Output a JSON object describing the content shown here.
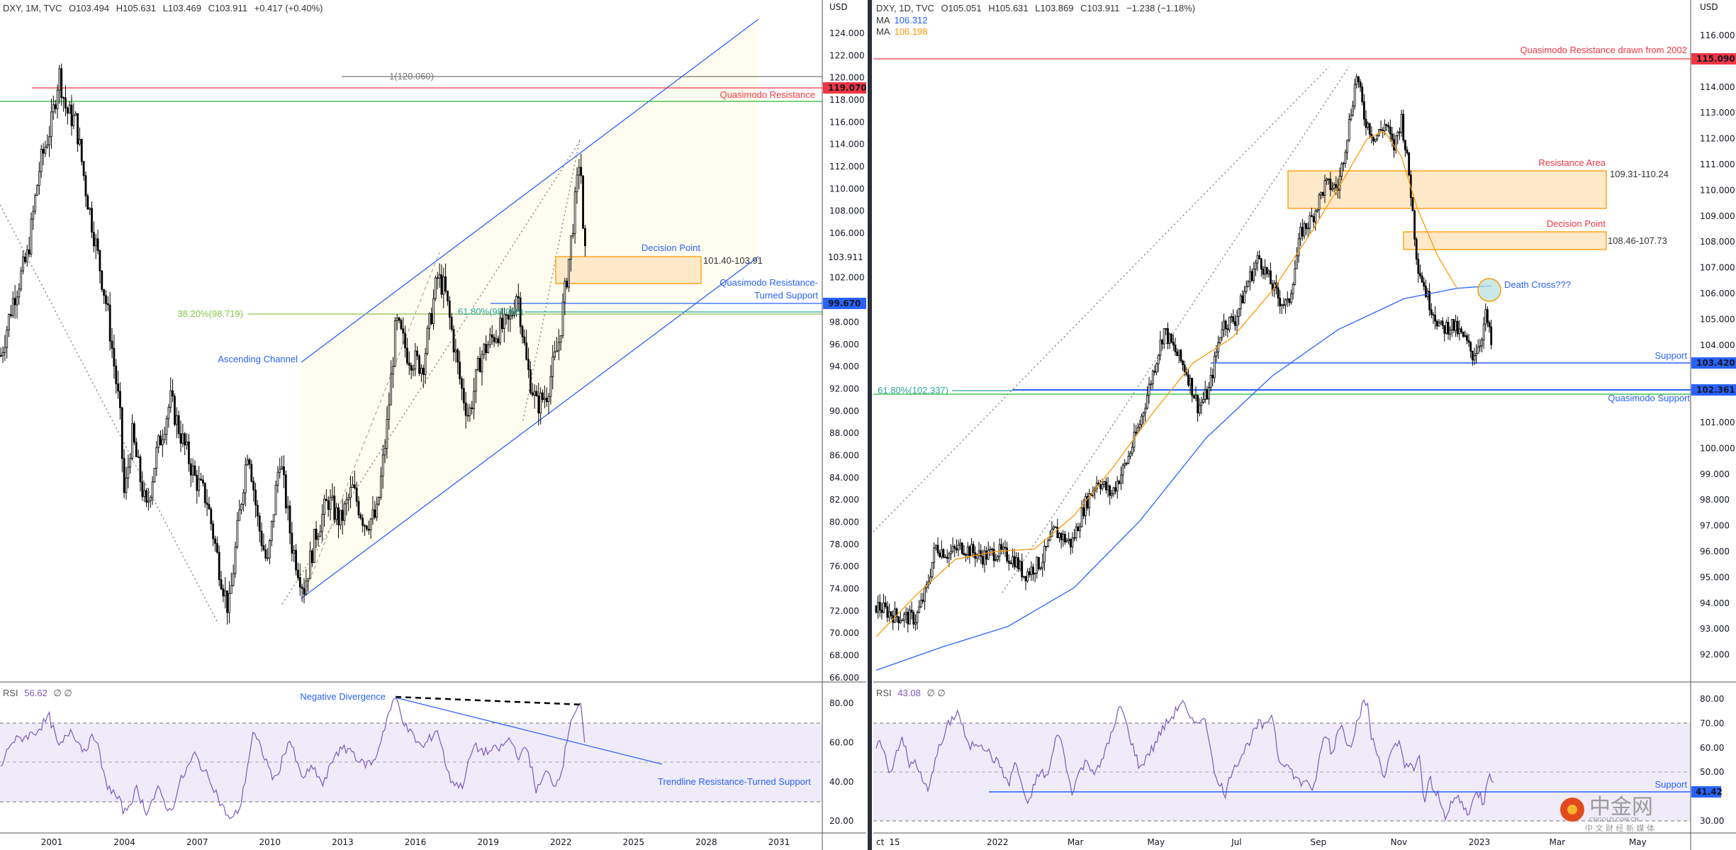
{
  "left_chart": {
    "header": {
      "symbol": "DXY, 1M, TVC",
      "open": "O103.494",
      "high": "H105.631",
      "low": "L103.469",
      "close": "C103.911",
      "change": "+0.417 (+0.40%)"
    },
    "currency": "USD",
    "price_ticks": [
      "124.000",
      "122.000",
      "120.000",
      "118.000",
      "116.000",
      "114.000",
      "112.000",
      "110.000",
      "108.000",
      "106.000",
      "102.000",
      "98.000",
      "96.000",
      "94.000",
      "92.000",
      "90.000",
      "88.000",
      "86.000",
      "84.000",
      "82.000",
      "80.000",
      "78.000",
      "76.000",
      "74.000",
      "72.000",
      "70.000",
      "68.000",
      "66.000"
    ],
    "price_tick_values": [
      124,
      122,
      120,
      118,
      116,
      114,
      112,
      110,
      108,
      106,
      102,
      98,
      96,
      94,
      92,
      90,
      88,
      86,
      84,
      82,
      80,
      78,
      76,
      74,
      72,
      70,
      68,
      66
    ],
    "tags": {
      "quasimodo_resistance": "119.070",
      "last_price": "103.911",
      "turned_support": "99.670"
    },
    "annotations": {
      "fib_1": "1(120.060)",
      "quasimodo_resistance": "Quasimodo Resistance",
      "decision_point": "Decision Point",
      "decision_range": "101.40-103.91",
      "turned_support_1": "Quasimodo Resistance-",
      "turned_support_2": "Turned Support",
      "fib_382": "38.20%(98.719)",
      "fib_618": "61.80%(98.968)",
      "ascending_channel": "Ascending Channel"
    },
    "price_path": [
      [
        1998.9,
        95
      ],
      [
        1999.4,
        100
      ],
      [
        2000.0,
        104
      ],
      [
        2000.5,
        112
      ],
      [
        2001.0,
        116
      ],
      [
        2001.3,
        120.5
      ],
      [
        2001.6,
        117
      ],
      [
        2002.0,
        116
      ],
      [
        2002.4,
        110
      ],
      [
        2002.9,
        104
      ],
      [
        2003.3,
        99
      ],
      [
        2003.8,
        90
      ],
      [
        2004.0,
        82
      ],
      [
        2004.3,
        88
      ],
      [
        2004.9,
        81
      ],
      [
        2005.3,
        86
      ],
      [
        2005.9,
        91
      ],
      [
        2006.3,
        88
      ],
      [
        2006.9,
        84
      ],
      [
        2007.4,
        82
      ],
      [
        2007.9,
        76
      ],
      [
        2008.3,
        72
      ],
      [
        2008.7,
        80
      ],
      [
        2009.1,
        87
      ],
      [
        2009.5,
        80
      ],
      [
        2009.9,
        76
      ],
      [
        2010.4,
        86
      ],
      [
        2010.9,
        78
      ],
      [
        2011.4,
        74
      ],
      [
        2011.9,
        79
      ],
      [
        2012.4,
        82
      ],
      [
        2012.9,
        80
      ],
      [
        2013.4,
        83
      ],
      [
        2013.9,
        80
      ],
      [
        2014.4,
        80.5
      ],
      [
        2014.8,
        88
      ],
      [
        2015.2,
        98
      ],
      [
        2015.7,
        95
      ],
      [
        2016.3,
        94
      ],
      [
        2016.9,
        102
      ],
      [
        2017.2,
        101
      ],
      [
        2017.9,
        92
      ],
      [
        2018.2,
        89.5
      ],
      [
        2018.7,
        95
      ],
      [
        2019.3,
        97
      ],
      [
        2019.9,
        98
      ],
      [
        2020.2,
        101
      ],
      [
        2020.6,
        94
      ],
      [
        2021.0,
        90.5
      ],
      [
        2021.4,
        91.5
      ],
      [
        2021.9,
        96
      ],
      [
        2022.3,
        103
      ],
      [
        2022.7,
        111
      ],
      [
        2022.8,
        114
      ],
      [
        2022.9,
        106
      ],
      [
        2023.0,
        103.9
      ]
    ],
    "rsi": {
      "label": "RSI",
      "value": "56.62",
      "flags": "∅ ∅",
      "ticks": [
        "80.00",
        "60.00",
        "40.00",
        "20.00"
      ],
      "tick_values": [
        80,
        60,
        40,
        20
      ],
      "negative_divergence": "Negative Divergence",
      "trendline_label": "Trendline Resistance-Turned Support",
      "path": [
        [
          1998.9,
          47
        ],
        [
          1999.3,
          60
        ],
        [
          2000.3,
          65
        ],
        [
          2000.9,
          73
        ],
        [
          2001.3,
          57
        ],
        [
          2001.8,
          67
        ],
        [
          2002.3,
          56
        ],
        [
          2002.8,
          64
        ],
        [
          2003.2,
          40
        ],
        [
          2003.8,
          30
        ],
        [
          2004.0,
          24
        ],
        [
          2004.5,
          36
        ],
        [
          2004.9,
          25
        ],
        [
          2005.4,
          36
        ],
        [
          2005.9,
          24
        ],
        [
          2006.3,
          40
        ],
        [
          2006.9,
          54
        ],
        [
          2007.3,
          45
        ],
        [
          2007.6,
          40
        ],
        [
          2008.0,
          28
        ],
        [
          2008.4,
          20
        ],
        [
          2008.8,
          28
        ],
        [
          2009.3,
          65
        ],
        [
          2009.7,
          55
        ],
        [
          2010.2,
          40
        ],
        [
          2010.8,
          62
        ],
        [
          2011.3,
          42
        ],
        [
          2011.8,
          47
        ],
        [
          2012.2,
          38
        ],
        [
          2012.7,
          55
        ],
        [
          2013.3,
          57
        ],
        [
          2013.8,
          49
        ],
        [
          2014.3,
          50
        ],
        [
          2014.9,
          75
        ],
        [
          2015.2,
          83
        ],
        [
          2015.6,
          68
        ],
        [
          2016.3,
          57
        ],
        [
          2016.9,
          67
        ],
        [
          2017.4,
          42
        ],
        [
          2017.9,
          37
        ],
        [
          2018.4,
          58
        ],
        [
          2018.9,
          55
        ],
        [
          2019.5,
          57
        ],
        [
          2019.9,
          62
        ],
        [
          2020.3,
          52
        ],
        [
          2020.6,
          58
        ],
        [
          2021.0,
          35
        ],
        [
          2021.4,
          45
        ],
        [
          2021.8,
          38
        ],
        [
          2022.1,
          50
        ],
        [
          2022.4,
          72
        ],
        [
          2022.8,
          80
        ],
        [
          2023.0,
          56.6
        ]
      ]
    },
    "time_labels": [
      "2001",
      "2004",
      "2007",
      "2010",
      "2013",
      "2016",
      "2019",
      "2022",
      "2025",
      "2028",
      "2031"
    ],
    "time_values": [
      2001,
      2004,
      2007,
      2010,
      2013,
      2016,
      2019,
      2022,
      2025,
      2028,
      2031
    ]
  },
  "right_chart": {
    "header": {
      "symbol": "DXY, 1D, TVC",
      "open": "O105.051",
      "high": "H105.631",
      "low": "L103.869",
      "close": "C103.911",
      "change": "−1.238 (−1.18%)"
    },
    "ma1": {
      "label": "MA",
      "value": "106.312",
      "color": "#2962ff"
    },
    "ma2": {
      "label": "MA",
      "value": "106.198",
      "color": "#ff9800"
    },
    "currency": "USD",
    "price_ticks": [
      "116.000",
      "114.000",
      "113.000",
      "112.000",
      "111.000",
      "110.000",
      "109.000",
      "108.000",
      "107.000",
      "106.000",
      "105.000",
      "104.000",
      "101.000",
      "100.000",
      "99.000",
      "98.000",
      "97.000",
      "96.000",
      "95.000",
      "94.000",
      "93.000",
      "92.000"
    ],
    "price_tick_values": [
      116,
      114,
      113,
      112,
      111,
      110,
      109,
      108,
      107,
      106,
      105,
      104,
      101,
      100,
      99,
      98,
      97,
      96,
      95,
      94,
      93,
      92
    ],
    "tags": {
      "quasimodo_resistance": "115.090",
      "support": "103.420",
      "quasimodo_support": "102.361"
    },
    "annotations": {
      "quasimodo_resistance": "Quasimodo Resistance drawn from 2002",
      "resistance_area": "Resistance Area",
      "resistance_range": "109.31-110.24",
      "decision_point": "Decision Point",
      "decision_range": "108.46-107.73",
      "death_cross": "Death Cross???",
      "support": "Support",
      "fib_618": "61.80%(102.337)",
      "quasimodo_support": "Quasimodo Support"
    },
    "price_path": [
      [
        0,
        93.9
      ],
      [
        15,
        93.5
      ],
      [
        30,
        93.4
      ],
      [
        38,
        94.5
      ],
      [
        45,
        96.2
      ],
      [
        55,
        95.9
      ],
      [
        65,
        96.2
      ],
      [
        80,
        95.8
      ],
      [
        92,
        96
      ],
      [
        105,
        95.7
      ],
      [
        112,
        95.1
      ],
      [
        125,
        95.6
      ],
      [
        135,
        96.8
      ],
      [
        148,
        96.3
      ],
      [
        158,
        97.8
      ],
      [
        168,
        98.8
      ],
      [
        178,
        98.2
      ],
      [
        190,
        99.5
      ],
      [
        200,
        101
      ],
      [
        210,
        103
      ],
      [
        218,
        104.6
      ],
      [
        226,
        103.8
      ],
      [
        235,
        103
      ],
      [
        244,
        101.6
      ],
      [
        252,
        102.2
      ],
      [
        262,
        104.8
      ],
      [
        272,
        105
      ],
      [
        282,
        106.5
      ],
      [
        290,
        107.4
      ],
      [
        298,
        106.5
      ],
      [
        305,
        105.8
      ],
      [
        312,
        105.5
      ],
      [
        322,
        108.4
      ],
      [
        330,
        108.9
      ],
      [
        340,
        110.2
      ],
      [
        350,
        110.1
      ],
      [
        358,
        112.5
      ],
      [
        364,
        114.5
      ],
      [
        370,
        112.8
      ],
      [
        378,
        112
      ],
      [
        386,
        112.6
      ],
      [
        392,
        111.6
      ],
      [
        398,
        112.8
      ],
      [
        404,
        110.5
      ],
      [
        410,
        107.2
      ],
      [
        418,
        105.8
      ],
      [
        428,
        104.6
      ],
      [
        436,
        104.8
      ],
      [
        446,
        104.2
      ],
      [
        452,
        103.6
      ],
      [
        458,
        104.2
      ],
      [
        462,
        105.2
      ],
      [
        466,
        104
      ]
    ],
    "ma50_path": [
      [
        0,
        92.7
      ],
      [
        30,
        94.3
      ],
      [
        60,
        95.7
      ],
      [
        90,
        96
      ],
      [
        120,
        96.1
      ],
      [
        150,
        97.4
      ],
      [
        180,
        99.3
      ],
      [
        210,
        101.4
      ],
      [
        240,
        103.3
      ],
      [
        270,
        104.3
      ],
      [
        300,
        106.1
      ],
      [
        330,
        108.4
      ],
      [
        355,
        110.5
      ],
      [
        372,
        112
      ],
      [
        385,
        112.3
      ],
      [
        398,
        111.3
      ],
      [
        410,
        109.3
      ],
      [
        425,
        107.5
      ],
      [
        440,
        106.2
      ]
    ],
    "ma200_path": [
      [
        0,
        91.4
      ],
      [
        50,
        92.3
      ],
      [
        100,
        93.1
      ],
      [
        150,
        94.6
      ],
      [
        200,
        97.2
      ],
      [
        250,
        100.4
      ],
      [
        300,
        102.8
      ],
      [
        350,
        104.6
      ],
      [
        400,
        105.8
      ],
      [
        440,
        106.2
      ],
      [
        466,
        106.3
      ]
    ],
    "rsi": {
      "label": "RSI",
      "value": "43.08",
      "flags": "∅ ∅",
      "ticks": [
        "80.00",
        "70.00",
        "60.00",
        "50.00",
        "30.00"
      ],
      "tick_values": [
        80,
        70,
        60,
        50,
        30
      ],
      "support_label": "Support",
      "support_tag": "41.42",
      "path": [
        [
          0,
          60
        ],
        [
          5,
          62
        ],
        [
          10,
          48
        ],
        [
          15,
          58
        ],
        [
          20,
          65
        ],
        [
          25,
          52
        ],
        [
          30,
          55
        ],
        [
          35,
          46
        ],
        [
          40,
          42
        ],
        [
          45,
          57
        ],
        [
          50,
          62
        ],
        [
          55,
          70
        ],
        [
          62,
          75
        ],
        [
          70,
          60
        ],
        [
          75,
          62
        ],
        [
          80,
          62
        ],
        [
          88,
          56
        ],
        [
          95,
          52
        ],
        [
          100,
          44
        ],
        [
          105,
          54
        ],
        [
          110,
          46
        ],
        [
          115,
          35
        ],
        [
          120,
          46
        ],
        [
          125,
          50
        ],
        [
          130,
          48
        ],
        [
          138,
          68
        ],
        [
          143,
          55
        ],
        [
          148,
          42
        ],
        [
          154,
          50
        ],
        [
          160,
          55
        ],
        [
          165,
          50
        ],
        [
          170,
          52
        ],
        [
          175,
          62
        ],
        [
          180,
          67
        ],
        [
          185,
          78
        ],
        [
          192,
          65
        ],
        [
          200,
          51
        ],
        [
          205,
          57
        ],
        [
          210,
          60
        ],
        [
          215,
          66
        ],
        [
          220,
          70
        ],
        [
          226,
          74
        ],
        [
          232,
          80
        ],
        [
          236,
          73
        ],
        [
          240,
          70
        ],
        [
          245,
          72
        ],
        [
          250,
          70
        ],
        [
          255,
          56
        ],
        [
          258,
          45
        ],
        [
          262,
          44
        ],
        [
          265,
          41
        ],
        [
          270,
          52
        ],
        [
          275,
          55
        ],
        [
          282,
          62
        ],
        [
          290,
          70
        ],
        [
          295,
          68
        ],
        [
          300,
          75
        ],
        [
          305,
          55
        ],
        [
          310,
          54
        ],
        [
          315,
          50
        ],
        [
          322,
          45
        ],
        [
          326,
          48
        ],
        [
          330,
          40
        ],
        [
          334,
          50
        ],
        [
          338,
          62
        ],
        [
          342,
          66
        ],
        [
          345,
          56
        ],
        [
          350,
          68
        ],
        [
          352,
          70
        ],
        [
          356,
          63
        ],
        [
          360,
          62
        ],
        [
          365,
          72
        ],
        [
          368,
          77
        ],
        [
          372,
          79
        ],
        [
          375,
          65
        ],
        [
          378,
          60
        ],
        [
          382,
          54
        ],
        [
          385,
          48
        ],
        [
          389,
          56
        ],
        [
          393,
          60
        ],
        [
          397,
          62
        ],
        [
          400,
          54
        ],
        [
          405,
          52
        ],
        [
          408,
          50
        ],
        [
          412,
          58
        ],
        [
          415,
          36
        ],
        [
          418,
          44
        ],
        [
          420,
          47
        ],
        [
          423,
          40
        ],
        [
          425,
          42
        ],
        [
          428,
          38
        ],
        [
          432,
          31
        ],
        [
          436,
          37
        ],
        [
          440,
          40
        ],
        [
          444,
          37
        ],
        [
          448,
          33
        ],
        [
          452,
          38
        ],
        [
          455,
          41
        ],
        [
          458,
          41
        ],
        [
          460,
          36
        ],
        [
          463,
          48
        ],
        [
          465,
          51
        ],
        [
          468,
          43
        ]
      ]
    },
    "time_labels": [
      "ct",
      "15",
      "2022",
      "Mar",
      "May",
      "Jul",
      "Sep",
      "Nov",
      "2023",
      "Mar",
      "May"
    ],
    "time_values": [
      0,
      14,
      92,
      151,
      212,
      273,
      335,
      396,
      457,
      516,
      577
    ]
  },
  "watermark": {
    "logo_text": "中金网",
    "domain": "CNGOLD.COM.CN",
    "tagline": "中 文 财 经 新 媒 体"
  },
  "colors": {
    "red": "#f23645",
    "blue": "#2962ff",
    "green": "#22bb33",
    "orange": "#ff9800",
    "zone_fill": "#ffe9c8",
    "rsi_line": "#7e57c2",
    "rsi_band": "#efebf8",
    "channel_fill": "#fffdf0"
  }
}
